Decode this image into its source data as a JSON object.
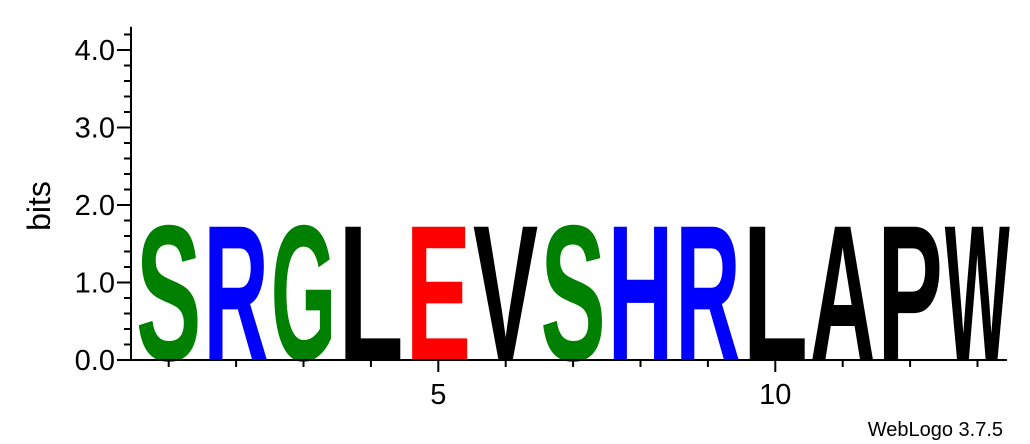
{
  "chart_data": {
    "type": "sequence-logo",
    "ylabel": "bits",
    "ylim": [
      0,
      4.3
    ],
    "y_ticks": [
      "0.0",
      "1.0",
      "2.0",
      "3.0",
      "4.0"
    ],
    "x_ticks": [
      {
        "position": 5,
        "label": "5"
      },
      {
        "position": 10,
        "label": "10"
      }
    ],
    "positions": [
      {
        "pos": 1,
        "letter": "S",
        "bits": 1.8,
        "color": "#008000"
      },
      {
        "pos": 2,
        "letter": "R",
        "bits": 1.8,
        "color": "#0000ff"
      },
      {
        "pos": 3,
        "letter": "G",
        "bits": 1.8,
        "color": "#008000"
      },
      {
        "pos": 4,
        "letter": "L",
        "bits": 1.8,
        "color": "#000000"
      },
      {
        "pos": 5,
        "letter": "E",
        "bits": 1.8,
        "color": "#ff0000"
      },
      {
        "pos": 6,
        "letter": "V",
        "bits": 1.8,
        "color": "#000000"
      },
      {
        "pos": 7,
        "letter": "S",
        "bits": 1.8,
        "color": "#008000"
      },
      {
        "pos": 8,
        "letter": "H",
        "bits": 1.8,
        "color": "#0000ff"
      },
      {
        "pos": 9,
        "letter": "R",
        "bits": 1.8,
        "color": "#0000ff"
      },
      {
        "pos": 10,
        "letter": "L",
        "bits": 1.8,
        "color": "#000000"
      },
      {
        "pos": 11,
        "letter": "A",
        "bits": 1.8,
        "color": "#000000"
      },
      {
        "pos": 12,
        "letter": "P",
        "bits": 1.8,
        "color": "#000000"
      },
      {
        "pos": 13,
        "letter": "W",
        "bits": 1.8,
        "color": "#000000"
      }
    ]
  },
  "footer": {
    "credit": "WebLogo 3.7.5"
  }
}
